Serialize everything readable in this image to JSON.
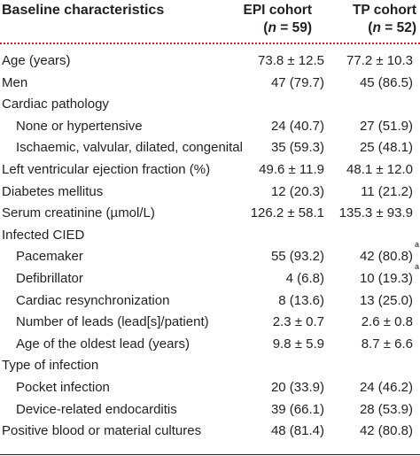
{
  "header": {
    "label_col": "Baseline characteristics",
    "epi_line1": "EPI cohort",
    "epi_n_var": "n",
    "epi_n_rest": " = 59)",
    "tp_line1": "TP cohort",
    "tp_n_var": "n",
    "tp_n_rest": " = 52)"
  },
  "rows": [
    {
      "label": "Age (years)",
      "epi": "73.8 ± 12.5",
      "tp": "77.2 ± 10.3",
      "indent": false,
      "sup": ""
    },
    {
      "label": "Men",
      "epi": "47 (79.7)",
      "tp": "45 (86.5)",
      "indent": false,
      "sup": ""
    },
    {
      "label": "Cardiac pathology",
      "epi": "",
      "tp": "",
      "indent": false,
      "sup": ""
    },
    {
      "label": "None or hypertensive",
      "epi": "24 (40.7)",
      "tp": "27 (51.9)",
      "indent": true,
      "sup": ""
    },
    {
      "label": "Ischaemic, valvular, dilated, congenital",
      "epi": "35 (59.3)",
      "tp": "25 (48.1)",
      "indent": true,
      "sup": ""
    },
    {
      "label": "Left ventricular ejection fraction (%)",
      "epi": "49.6 ± 11.9",
      "tp": "48.1 ± 12.0",
      "indent": false,
      "sup": ""
    },
    {
      "label": "Diabetes mellitus",
      "epi": "12 (20.3)",
      "tp": "11 (21.2)",
      "indent": false,
      "sup": ""
    },
    {
      "label": "Serum creatinine (µmol/L)",
      "epi": "126.2 ± 58.1",
      "tp": "135.3 ± 93.9",
      "indent": false,
      "sup": ""
    },
    {
      "label": "Infected CIED",
      "epi": "",
      "tp": "",
      "indent": false,
      "sup": ""
    },
    {
      "label": "Pacemaker",
      "epi": "55 (93.2)",
      "tp": "42 (80.8)",
      "indent": true,
      "sup": "a"
    },
    {
      "label": "Defibrillator",
      "epi": "4 (6.8)",
      "tp": "10 (19.3)",
      "indent": true,
      "sup": "a"
    },
    {
      "label": "Cardiac resynchronization",
      "epi": "8 (13.6)",
      "tp": "13 (25.0)",
      "indent": true,
      "sup": ""
    },
    {
      "label": "Number of leads (lead[s]/patient)",
      "epi": "2.3 ± 0.7",
      "tp": "2.6 ± 0.8",
      "indent": true,
      "sup": ""
    },
    {
      "label": "Age of the oldest lead (years)",
      "epi": "9.8 ± 5.9",
      "tp": "8.7 ± 6.6",
      "indent": true,
      "sup": ""
    },
    {
      "label": "Type of infection",
      "epi": "",
      "tp": "",
      "indent": false,
      "sup": ""
    },
    {
      "label": "Pocket infection",
      "epi": "20 (33.9)",
      "tp": "24 (46.2)",
      "indent": true,
      "sup": ""
    },
    {
      "label": "Device-related endocarditis",
      "epi": "39 (66.1)",
      "tp": "28 (53.9)",
      "indent": true,
      "sup": ""
    },
    {
      "label": "Positive blood or material cultures",
      "epi": "48 (81.4)",
      "tp": "42 (80.8)",
      "indent": false,
      "sup": ""
    }
  ]
}
